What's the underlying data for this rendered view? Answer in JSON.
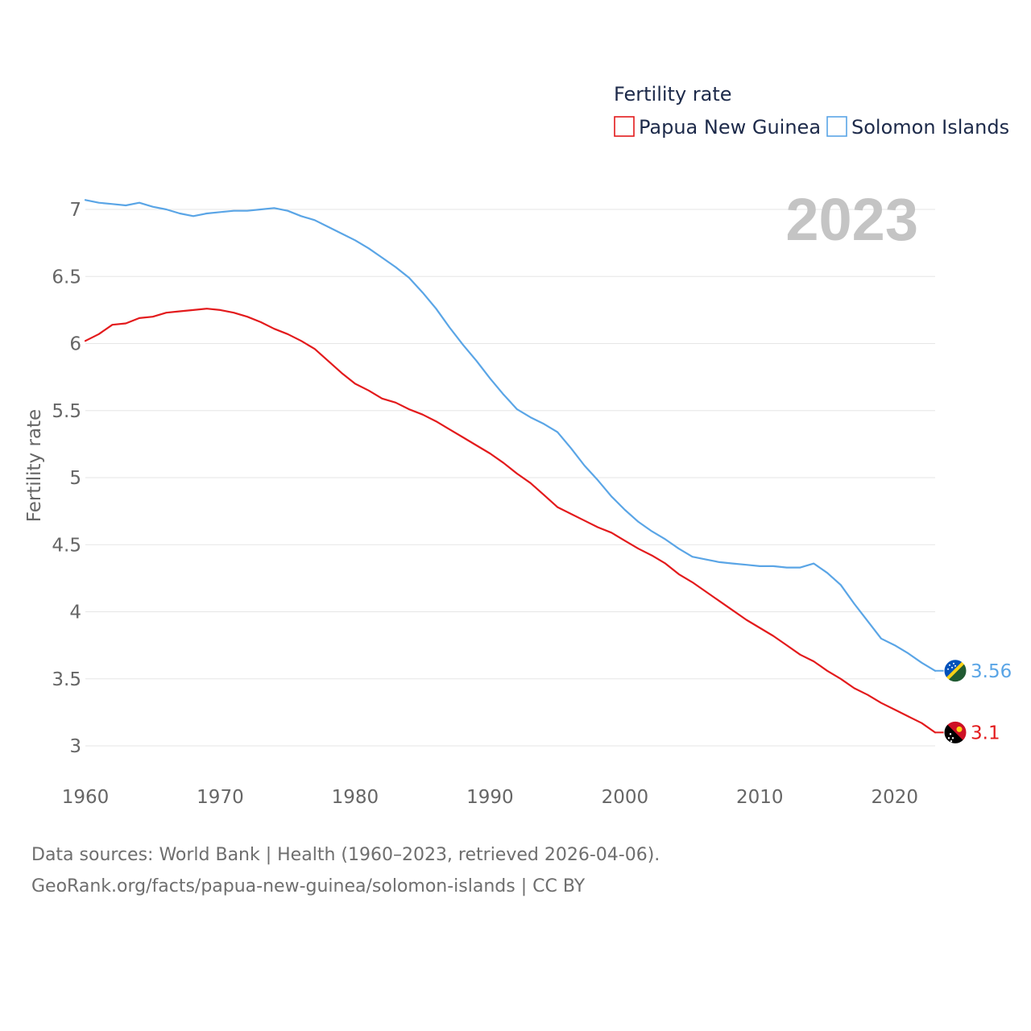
{
  "chart_data": {
    "type": "line",
    "title": "",
    "legend_title": "Fertility rate",
    "ylabel": "Fertility rate",
    "xlabel": "",
    "year_label": "2023",
    "xlim": [
      1960,
      2023
    ],
    "ylim": [
      3,
      7
    ],
    "x_ticks": [
      1960,
      1970,
      1980,
      1990,
      2000,
      2010,
      2020
    ],
    "y_ticks": [
      3,
      3.5,
      4,
      4.5,
      5,
      5.5,
      6,
      6.5,
      7
    ],
    "y_tick_labels": [
      "3",
      "3.5",
      "4",
      "4.5",
      "5",
      "5.5",
      "6",
      "6.5",
      "7"
    ],
    "x_tick_labels": [
      "1960",
      "1970",
      "1980",
      "1990",
      "2000",
      "2010",
      "2020"
    ],
    "x_start": 1960,
    "legend_position": "top-right",
    "series": [
      {
        "name": "Papua New Guinea",
        "color": "#e31a1c",
        "end_label": "3.1",
        "flag": "papua-new-guinea-flag-icon",
        "values": [
          6.02,
          6.07,
          6.14,
          6.15,
          6.19,
          6.2,
          6.23,
          6.24,
          6.25,
          6.26,
          6.25,
          6.23,
          6.2,
          6.16,
          6.11,
          6.07,
          6.02,
          5.96,
          5.87,
          5.78,
          5.7,
          5.65,
          5.59,
          5.56,
          5.51,
          5.47,
          5.42,
          5.36,
          5.3,
          5.24,
          5.18,
          5.11,
          5.03,
          4.96,
          4.87,
          4.78,
          4.73,
          4.68,
          4.63,
          4.59,
          4.53,
          4.47,
          4.42,
          4.36,
          4.28,
          4.22,
          4.15,
          4.08,
          4.01,
          3.94,
          3.88,
          3.82,
          3.75,
          3.68,
          3.63,
          3.56,
          3.5,
          3.43,
          3.38,
          3.32,
          3.27,
          3.22,
          3.17,
          3.1
        ]
      },
      {
        "name": "Solomon Islands",
        "color": "#5aa5e6",
        "end_label": "3.56",
        "flag": "solomon-islands-flag-icon",
        "values": [
          7.07,
          7.05,
          7.04,
          7.03,
          7.05,
          7.02,
          7.0,
          6.97,
          6.95,
          6.97,
          6.98,
          6.99,
          6.99,
          7.0,
          7.01,
          6.99,
          6.95,
          6.92,
          6.87,
          6.82,
          6.77,
          6.71,
          6.64,
          6.57,
          6.49,
          6.38,
          6.26,
          6.12,
          5.99,
          5.87,
          5.74,
          5.62,
          5.51,
          5.45,
          5.4,
          5.34,
          5.22,
          5.09,
          4.98,
          4.86,
          4.76,
          4.67,
          4.6,
          4.54,
          4.47,
          4.41,
          4.39,
          4.37,
          4.36,
          4.35,
          4.34,
          4.34,
          4.33,
          4.33,
          4.36,
          4.29,
          4.2,
          4.06,
          3.93,
          3.8,
          3.75,
          3.69,
          3.62,
          3.56
        ]
      }
    ]
  },
  "footer": {
    "line1": "Data sources: World Bank | Health (1960–2023, retrieved 2026-04-06).",
    "line2": "GeoRank.org/facts/papua-new-guinea/solomon-islands | CC BY"
  }
}
